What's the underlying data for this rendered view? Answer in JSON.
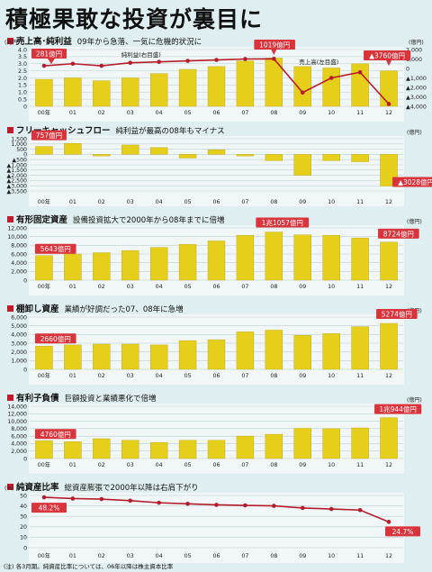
{
  "title": "積極果敢な投資が裏目に",
  "note": "(注) 各3月期。純資産比率については、06年以降は株主資本比率",
  "colors": {
    "bar": "#e6cf1a",
    "line": "#b51d2a",
    "callout": "#d9343b",
    "frame": "#cfe1e4",
    "grid": "#b9cfd3"
  },
  "panels": [
    {
      "heading": "売上高･純利益",
      "subtitle": "09年から急落、一気に危機的状況に",
      "unit_left": "(兆円)",
      "unit_right": "(億円)",
      "labels": {
        "net": "純利益(右目盛)",
        "sales": "売上高(左目盛)"
      },
      "callouts": [
        "281億円",
        "1019億円",
        "▲3760億円"
      ]
    },
    {
      "heading": "フリーキャッシュフロー",
      "subtitle": "純利益が最高の08年もマイナス",
      "unit": "(億円)",
      "callouts": [
        "757億円",
        "▲3028億円"
      ]
    },
    {
      "heading": "有形固定資産",
      "subtitle": "設備投資拡大で2000年から08年までに倍増",
      "unit": "(億円)",
      "callouts": [
        "5643億円",
        "1兆1057億円",
        "8724億円"
      ]
    },
    {
      "heading": "棚卸し資産",
      "subtitle": "業績が好調だった07、08年に急増",
      "unit": "(億円)",
      "callouts": [
        "2660億円",
        "5274億円"
      ]
    },
    {
      "heading": "有利子負債",
      "subtitle": "巨額投資と業績悪化で倍増",
      "unit": "(億円)",
      "callouts": [
        "4760億円",
        "1兆944億円"
      ]
    },
    {
      "heading": "純資産比率",
      "subtitle": "総資産膨張で2000年以降は右肩下がり",
      "unit": "(%)",
      "callouts": [
        "48.2%",
        "24.7%"
      ]
    }
  ],
  "chart_data": [
    {
      "type": "bar+line",
      "title": "売上高･純利益",
      "categories": [
        "00年",
        "01",
        "02",
        "03",
        "04",
        "05",
        "06",
        "07",
        "08",
        "09",
        "10",
        "11",
        "12"
      ],
      "series": [
        {
          "name": "売上高(左目盛)",
          "type": "bar",
          "axis": "left",
          "values": [
            1.9,
            2.0,
            1.8,
            2.0,
            2.3,
            2.6,
            2.8,
            3.2,
            3.4,
            2.8,
            2.7,
            3.0,
            2.5
          ]
        },
        {
          "name": "純利益(右目盛)",
          "type": "line",
          "axis": "right",
          "values": [
            281,
            500,
            280,
            600,
            700,
            800,
            900,
            1000,
            1019,
            -2550,
            -1000,
            -400,
            -3760
          ]
        }
      ],
      "yleft": {
        "ticks": [
          0,
          0.5,
          1.0,
          1.5,
          2.0,
          2.5,
          3.0,
          3.5,
          4.0
        ],
        "labels": [
          "0",
          "0.5",
          "1.0",
          "1.5",
          "2.0",
          "2.5",
          "3.0",
          "3.5",
          "4.0"
        ]
      },
      "yright": {
        "ticks": [
          -4000,
          -3000,
          -2000,
          -1000,
          0,
          1000,
          2000
        ],
        "labels": [
          "▲4,000",
          "▲3,000",
          "▲2,000",
          "▲1,000",
          "0",
          "1,000",
          "2,000"
        ]
      }
    },
    {
      "type": "bar",
      "title": "フリーキャッシュフロー",
      "categories": [
        "00年",
        "01",
        "02",
        "03",
        "04",
        "05",
        "06",
        "07",
        "08",
        "09",
        "10",
        "11",
        "12"
      ],
      "values": [
        757,
        1050,
        -150,
        900,
        650,
        -350,
        450,
        -150,
        -600,
        -2000,
        -600,
        -700,
        -3028
      ],
      "ylim": [
        -3500,
        1500
      ],
      "yticks": [
        -3500,
        -3000,
        -2500,
        -2000,
        -1500,
        -1000,
        -500,
        0,
        500,
        1000,
        1500
      ],
      "ytick_labels": [
        "▲3,500",
        "▲3,000",
        "▲2,500",
        "▲2,000",
        "▲1,500",
        "▲1,000",
        "▲500",
        "0",
        "500",
        "1,000",
        "1,500"
      ]
    },
    {
      "type": "bar",
      "title": "有形固定資産",
      "categories": [
        "00年",
        "01",
        "02",
        "03",
        "04",
        "05",
        "06",
        "07",
        "08",
        "09",
        "10",
        "11",
        "12"
      ],
      "values": [
        5643,
        6000,
        6300,
        6800,
        7500,
        8200,
        9000,
        10300,
        11057,
        10400,
        10300,
        9700,
        8724
      ],
      "ylim": [
        0,
        12000
      ],
      "yticks": [
        0,
        2000,
        4000,
        6000,
        8000,
        10000,
        12000
      ],
      "ytick_labels": [
        "0",
        "2,000",
        "4,000",
        "6,000",
        "8,000",
        "10,000",
        "12,000"
      ]
    },
    {
      "type": "bar",
      "title": "棚卸し資産",
      "categories": [
        "00年",
        "01",
        "02",
        "03",
        "04",
        "05",
        "06",
        "07",
        "08",
        "09",
        "10",
        "11",
        "12"
      ],
      "values": [
        2660,
        2800,
        2900,
        2900,
        2800,
        3300,
        3400,
        4300,
        4500,
        3900,
        4100,
        4900,
        5274
      ],
      "ylim": [
        0,
        6000
      ],
      "yticks": [
        0,
        1000,
        2000,
        3000,
        4000,
        5000,
        6000
      ],
      "ytick_labels": [
        "0",
        "1,000",
        "2,000",
        "3,000",
        "4,000",
        "5,000",
        "6,000"
      ]
    },
    {
      "type": "bar",
      "title": "有利子負債",
      "categories": [
        "00年",
        "01",
        "02",
        "03",
        "04",
        "05",
        "06",
        "07",
        "08",
        "09",
        "10",
        "11",
        "12"
      ],
      "values": [
        4760,
        4500,
        5300,
        4900,
        4300,
        4900,
        4900,
        6000,
        6500,
        8100,
        8000,
        8200,
        10944
      ],
      "ylim": [
        0,
        14000
      ],
      "yticks": [
        0,
        2000,
        4000,
        6000,
        8000,
        10000,
        12000,
        14000
      ],
      "ytick_labels": [
        "0",
        "2,000",
        "4,000",
        "6,000",
        "8,000",
        "10,000",
        "12,000",
        "14,000"
      ]
    },
    {
      "type": "line",
      "title": "純資産比率",
      "categories": [
        "00年",
        "01",
        "02",
        "03",
        "04",
        "05",
        "06",
        "07",
        "08",
        "09",
        "10",
        "11",
        "12"
      ],
      "values": [
        48.2,
        47.0,
        46.5,
        45.0,
        43.0,
        42.0,
        41.0,
        40.5,
        40.0,
        38.0,
        37.0,
        36.0,
        24.7
      ],
      "ylim": [
        0,
        50
      ],
      "yticks": [
        0,
        10,
        20,
        30,
        40,
        50
      ],
      "ytick_labels": [
        "0",
        "10",
        "20",
        "30",
        "40",
        "50"
      ]
    }
  ]
}
